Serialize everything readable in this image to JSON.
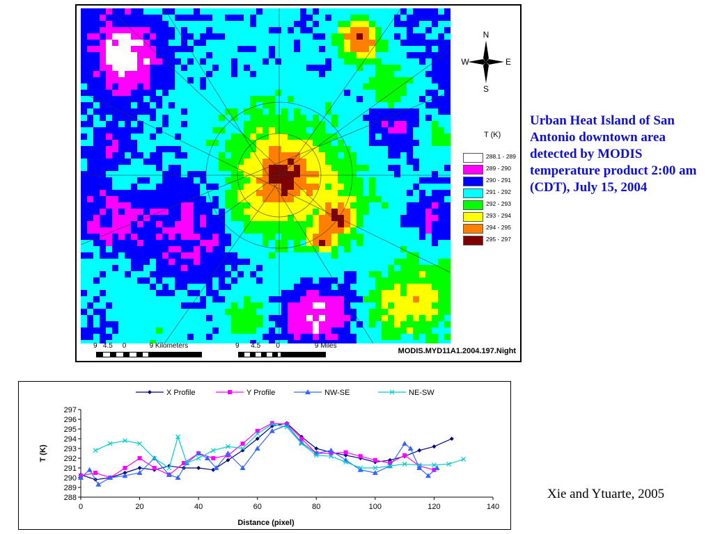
{
  "map": {
    "legend_title": "T (K)",
    "legend": [
      {
        "label": "288.1 - 289",
        "color": "#ffffff"
      },
      {
        "label": "289 - 290",
        "color": "#ff00ff"
      },
      {
        "label": "290 - 291",
        "color": "#0000ff"
      },
      {
        "label": "291 - 292",
        "color": "#00ffff"
      },
      {
        "label": "292 - 293",
        "color": "#00ff00"
      },
      {
        "label": "293 - 294",
        "color": "#ffff00"
      },
      {
        "label": "294 - 295",
        "color": "#ff7f00"
      },
      {
        "label": "295 - 297",
        "color": "#7f0000"
      }
    ],
    "compass": {
      "n": "N",
      "s": "S",
      "e": "E",
      "w": "W"
    },
    "scale_km_labels": "9   4.5     0            9 Kilometers",
    "scale_mi_labels": "9      4.5        0                  9 Miles",
    "source": "MODIS.MYD11A1.2004.197.Night"
  },
  "caption": "Urban Heat Island of San Antonio downtown area detected by MODIS temperature product 2:00 am (CDT), July 15, 2004",
  "credit": "Xie and Ytuarte, 2005",
  "chart_data": {
    "type": "line",
    "xlabel": "Distance (pixel)",
    "ylabel": "T (K)",
    "xlim": [
      0,
      140
    ],
    "ylim": [
      288,
      297
    ],
    "xticks": [
      0,
      20,
      40,
      60,
      80,
      100,
      120,
      140
    ],
    "yticks": [
      288,
      289,
      290,
      291,
      292,
      293,
      294,
      295,
      296,
      297
    ],
    "legend_position": "top",
    "series": [
      {
        "name": "X Profile",
        "color": "#000080",
        "marker": "diamond",
        "x": [
          0,
          5,
          10,
          15,
          20,
          25,
          30,
          35,
          40,
          45,
          50,
          55,
          60,
          65,
          70,
          75,
          80,
          85,
          90,
          95,
          100,
          105,
          110,
          115,
          120,
          126
        ],
        "y": [
          290.3,
          289.8,
          290.0,
          290.5,
          291.0,
          290.8,
          291.2,
          291.0,
          291.0,
          290.8,
          291.8,
          292.8,
          294.0,
          295.3,
          295.6,
          294.2,
          293.0,
          292.6,
          292.3,
          292.0,
          291.6,
          291.8,
          292.2,
          292.8,
          293.2,
          294.0
        ]
      },
      {
        "name": "Y Profile",
        "color": "#ff00ff",
        "marker": "square",
        "x": [
          0,
          5,
          10,
          15,
          20,
          25,
          30,
          35,
          40,
          45,
          50,
          55,
          60,
          65,
          70,
          75,
          80,
          85,
          90,
          95,
          100,
          105,
          110,
          115,
          120
        ],
        "y": [
          290.2,
          290.5,
          290.0,
          291.0,
          292.0,
          291.0,
          290.3,
          291.5,
          292.5,
          292.0,
          292.3,
          293.5,
          294.8,
          295.6,
          295.5,
          294.0,
          292.5,
          292.5,
          292.6,
          292.2,
          291.8,
          291.5,
          292.3,
          291.2,
          290.8
        ]
      },
      {
        "name": "NW-SE",
        "color": "#3366ff",
        "marker": "triangle",
        "x": [
          0,
          3,
          6,
          10,
          15,
          20,
          25,
          30,
          33,
          36,
          40,
          43,
          46,
          50,
          55,
          60,
          65,
          70,
          75,
          80,
          85,
          90,
          95,
          100,
          105,
          110,
          112,
          115,
          118,
          121
        ],
        "y": [
          290.0,
          290.8,
          289.3,
          290.0,
          290.2,
          290.5,
          292.0,
          290.3,
          290.0,
          291.5,
          292.5,
          292.0,
          291.0,
          292.5,
          291.0,
          293.0,
          294.8,
          295.4,
          293.6,
          292.5,
          292.8,
          291.8,
          290.8,
          290.5,
          291.2,
          293.5,
          293.0,
          291.0,
          290.2,
          291.0
        ]
      },
      {
        "name": "NE-SW",
        "color": "#00cccc",
        "marker": "x",
        "x": [
          5,
          10,
          15,
          20,
          25,
          30,
          33,
          36,
          40,
          45,
          50,
          55,
          60,
          65,
          70,
          75,
          80,
          85,
          90,
          95,
          100,
          105,
          110,
          115,
          120,
          125,
          130
        ],
        "y": [
          292.8,
          293.5,
          293.8,
          293.5,
          292.0,
          291.0,
          294.2,
          291.5,
          292.0,
          292.8,
          293.2,
          293.0,
          294.5,
          295.5,
          295.2,
          293.5,
          292.3,
          292.2,
          291.6,
          291.0,
          291.0,
          291.2,
          291.4,
          291.3,
          291.3,
          291.4,
          291.9
        ]
      }
    ]
  }
}
